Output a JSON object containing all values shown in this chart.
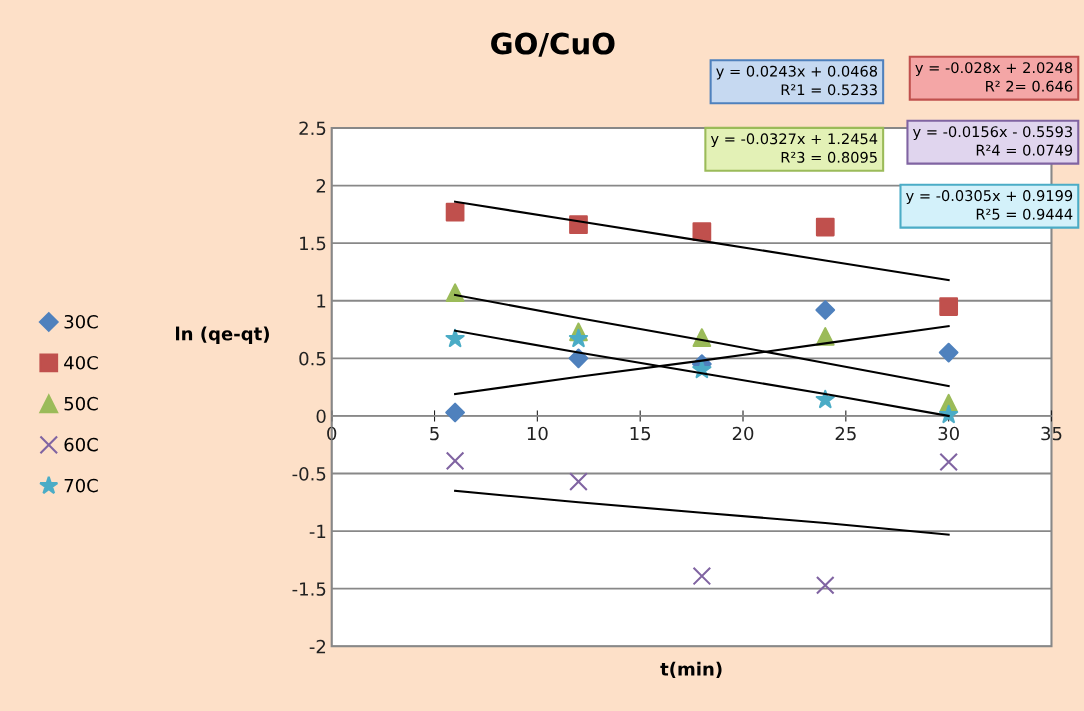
{
  "chart_data": {
    "type": "scatter",
    "title": "GO/CuO",
    "xlabel": "t(min)",
    "ylabel": "ln (qe-qt)",
    "x": [
      6,
      12,
      18,
      24,
      30
    ],
    "series": [
      {
        "name": "30C",
        "color": "#4f81bd",
        "marker": "diamond",
        "values": [
          0.03,
          0.5,
          0.45,
          0.92,
          0.55
        ]
      },
      {
        "name": "40C",
        "color": "#c0504d",
        "marker": "square",
        "values": [
          1.77,
          1.66,
          1.6,
          1.64,
          0.95
        ]
      },
      {
        "name": "50C",
        "color": "#9bbb59",
        "marker": "triangle",
        "values": [
          1.07,
          0.73,
          0.68,
          0.69,
          0.11
        ]
      },
      {
        "name": "60C",
        "color": "#8064a2",
        "marker": "cross",
        "values": [
          -0.39,
          -0.57,
          -1.39,
          -1.47,
          -0.4
        ]
      },
      {
        "name": "70C",
        "color": "#4bacc6",
        "marker": "star",
        "values": [
          0.67,
          0.67,
          0.4,
          0.14,
          0.01
        ]
      },
      {
        "type": "line",
        "color": "#000000",
        "values": [
          0.19,
          0.34,
          0.48,
          0.63,
          0.78
        ]
      },
      {
        "type": "line",
        "color": "#000000",
        "values": [
          1.86,
          1.69,
          1.52,
          1.35,
          1.18
        ]
      },
      {
        "type": "line",
        "color": "#000000",
        "values": [
          1.05,
          0.85,
          0.66,
          0.46,
          0.26
        ]
      },
      {
        "type": "line",
        "color": "#000000",
        "values": [
          -0.65,
          -0.75,
          -0.84,
          -0.93,
          -1.03
        ]
      },
      {
        "type": "line",
        "color": "#000000",
        "values": [
          0.74,
          0.55,
          0.37,
          0.19,
          0.0
        ]
      }
    ],
    "annotations": [
      "y = 0.0243x + 0.0468\nR²1 = 0.5233",
      "y = -0.028x + 2.0248\nR² 2= 0.646",
      "y = -0.0327x + 1.2454\nR²3 = 0.8095",
      "y = -0.0156x - 0.5593\nR²4 = 0.0749",
      "y = -0.0305x + 0.9199\nR²5 = 0.9444"
    ],
    "xlim": [
      0,
      35
    ],
    "xticks": [
      0,
      5,
      10,
      15,
      20,
      25,
      30,
      35
    ],
    "ylim": [
      -2,
      2.5
    ],
    "yticks": [
      -2,
      -1.5,
      -1,
      -0.5,
      0,
      0.5,
      1,
      1.5,
      2,
      2.5
    ],
    "grid": "y",
    "legend": "left"
  }
}
